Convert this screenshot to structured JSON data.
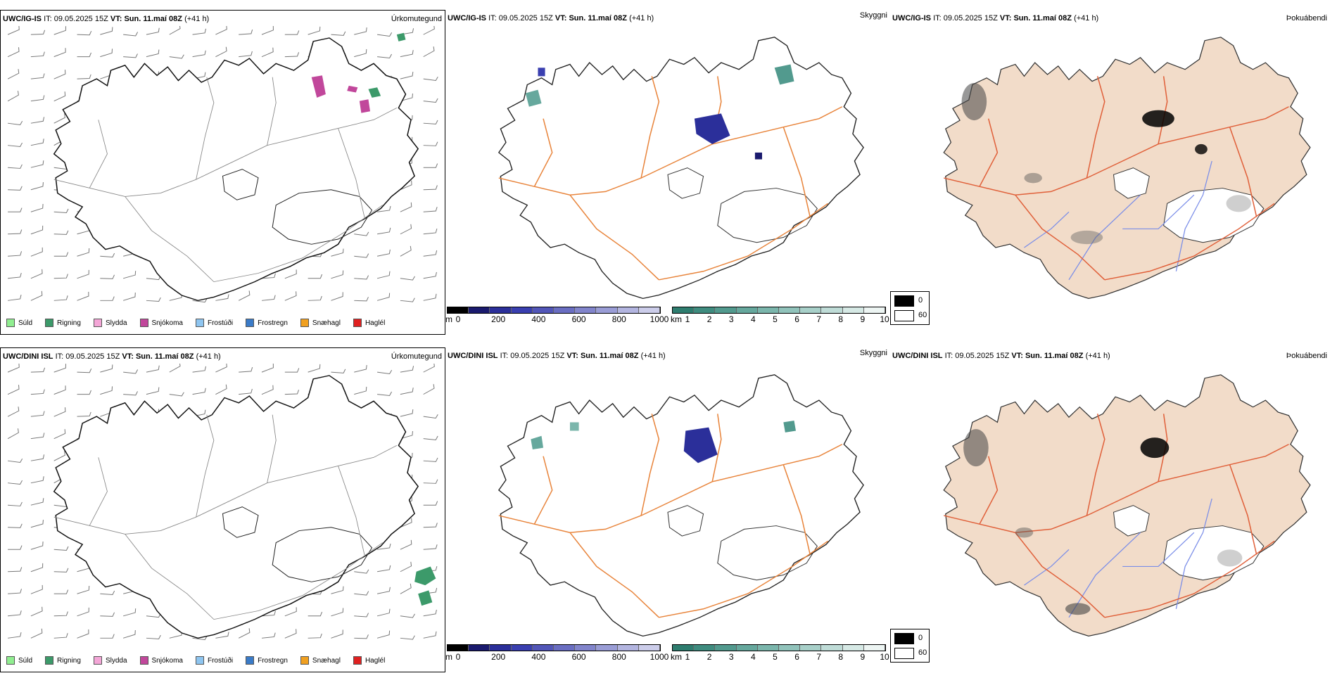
{
  "rows": [
    {
      "panels": [
        {
          "model": "UWC/IG-IS",
          "it_label": "IT:",
          "it_value": "09.05.2025 15Z",
          "vt_label": "VT:",
          "vt_value": "Sun. 11.maí 08Z",
          "lead": "(+41 h)",
          "right_title": "Úrkomutegund"
        },
        {
          "model": "UWC/IG-IS",
          "it_label": "IT:",
          "it_value": "09.05.2025 15Z",
          "vt_label": "VT:",
          "vt_value": "Sun. 11.maí 08Z",
          "lead": "(+41 h)",
          "right_title": "Skyggni"
        },
        {
          "model": "UWC/IG-IS",
          "it_label": "IT:",
          "it_value": "09.05.2025 15Z",
          "vt_label": "VT:",
          "vt_value": "Sun. 11.maí 08Z",
          "lead": "(+41 h)",
          "right_title": "Þokuábendi"
        }
      ]
    },
    {
      "panels": [
        {
          "model": "UWC/DINI ISL",
          "it_label": "IT:",
          "it_value": "09.05.2025 15Z",
          "vt_label": "VT:",
          "vt_value": "Sun. 11.maí 08Z",
          "lead": "(+41 h)",
          "right_title": "Úrkomutegund"
        },
        {
          "model": "UWC/DINI ISL",
          "it_label": "IT:",
          "it_value": "09.05.2025 15Z",
          "vt_label": "VT:",
          "vt_value": "Sun. 11.maí 08Z",
          "lead": "(+41 h)",
          "right_title": "Skyggni"
        },
        {
          "model": "UWC/DINI ISL",
          "it_label": "IT:",
          "it_value": "09.05.2025 15Z",
          "vt_label": "VT:",
          "vt_value": "Sun. 11.maí 08Z",
          "lead": "(+41 h)",
          "right_title": "Þokuábendi"
        }
      ]
    }
  ],
  "precip_legend": [
    {
      "label": "Súld",
      "color": "#90ee90"
    },
    {
      "label": "Rigning",
      "color": "#3c9a6a"
    },
    {
      "label": "Slydda",
      "color": "#f4a6d7"
    },
    {
      "label": "Snjókoma",
      "color": "#c1479b"
    },
    {
      "label": "Frostúði",
      "color": "#8ec5f0"
    },
    {
      "label": "Frostregn",
      "color": "#3a7bc8"
    },
    {
      "label": "Snæhagl",
      "color": "#f0a020"
    },
    {
      "label": "Haglél",
      "color": "#e02020"
    }
  ],
  "vis_colorbar_m": {
    "unit": "m",
    "ticks": [
      "0",
      "200",
      "400",
      "600",
      "800",
      "1000"
    ],
    "colors": [
      "#000000",
      "#1a1a6e",
      "#2b2f9a",
      "#3a3fb0",
      "#5256b8",
      "#6a6ec2",
      "#8285cc",
      "#9a9dd6",
      "#b3b5e0",
      "#cccdea"
    ]
  },
  "vis_colorbar_km": {
    "unit": "km",
    "ticks": [
      "1",
      "2",
      "3",
      "4",
      "5",
      "6",
      "7",
      "8",
      "9",
      "10"
    ],
    "colors": [
      "#2e7d6f",
      "#3f8c7f",
      "#529a8e",
      "#66a89d",
      "#7bb6ac",
      "#91c3bb",
      "#a8d0c9",
      "#bfdcd7",
      "#d6e9e5",
      "#edf5f3"
    ]
  },
  "fog_legend": [
    {
      "label": "0",
      "color": "#000000"
    },
    {
      "label": "60",
      "color": "#ffffff"
    }
  ],
  "map_colors": {
    "land_fill": "#f2dcc9",
    "roads": "#e8743b",
    "rivers": "#7a8de8",
    "coast": "#000000",
    "glacier_fill": "#ffffff"
  }
}
